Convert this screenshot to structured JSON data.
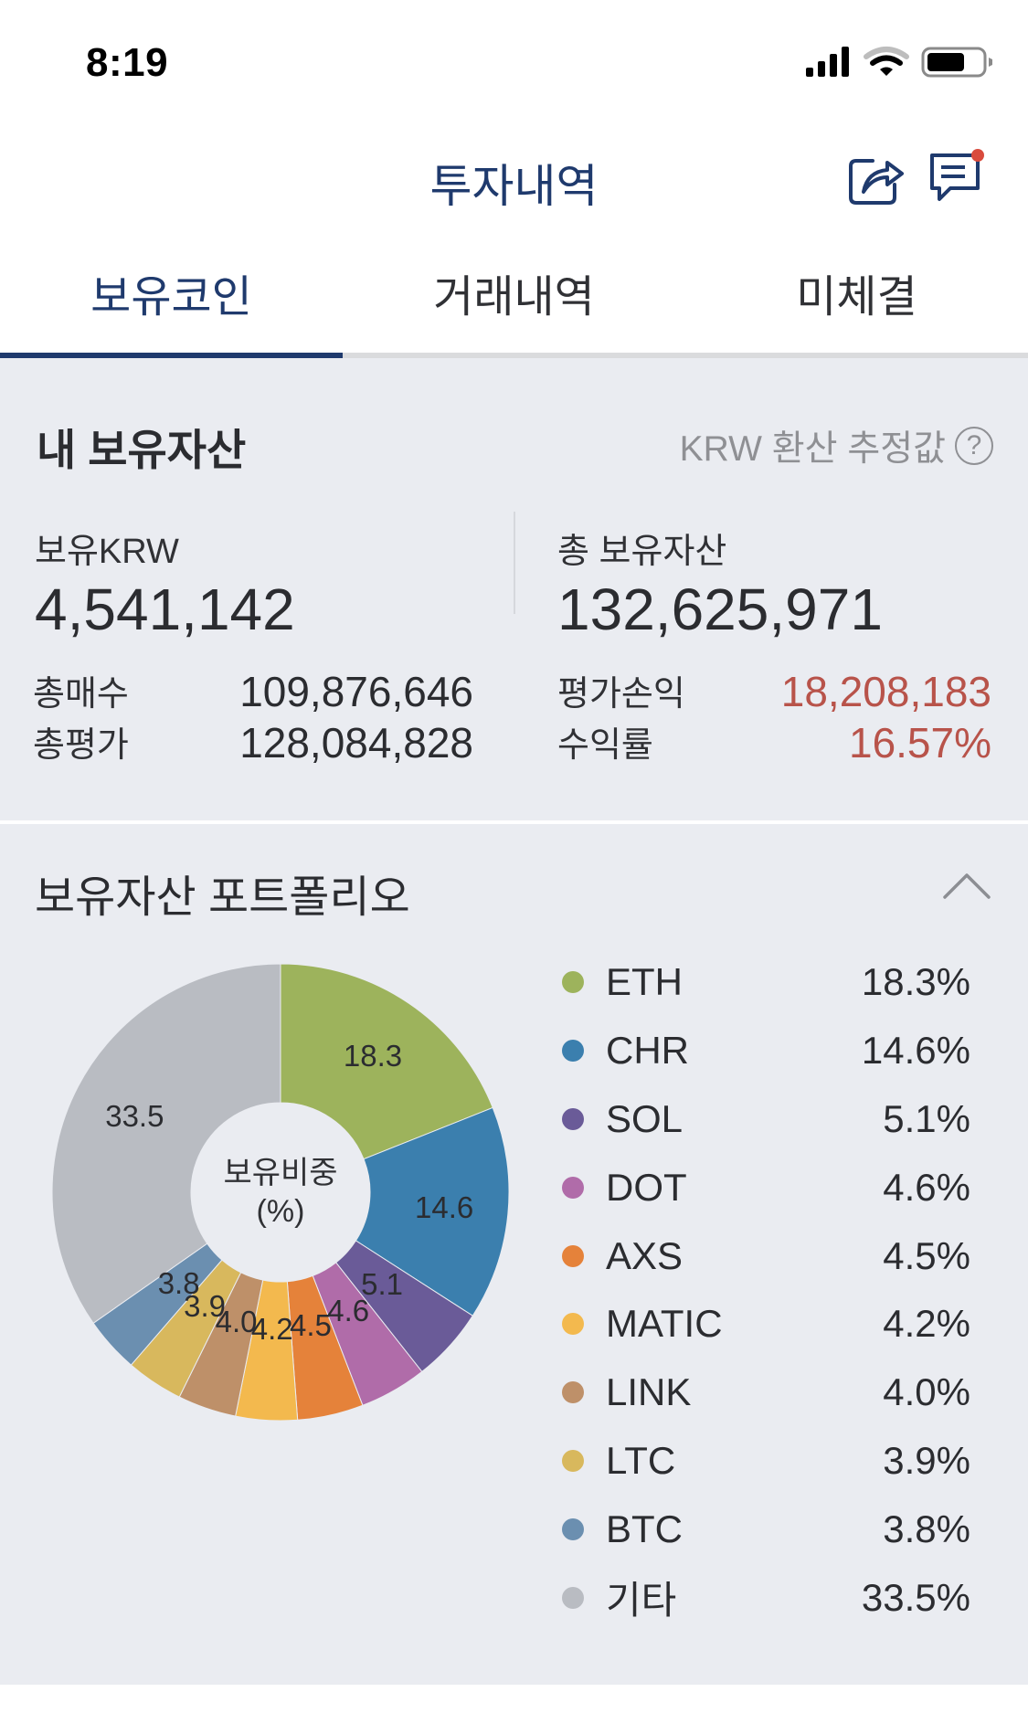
{
  "status_bar": {
    "time": "8:19",
    "icons": [
      "signal-icon",
      "wifi-icon",
      "battery-icon"
    ]
  },
  "header": {
    "title": "투자내역",
    "icons": [
      "share-icon",
      "chat-icon"
    ],
    "chat_badge_color": "#d94b3d"
  },
  "tabs": [
    {
      "label": "보유코인",
      "active": true
    },
    {
      "label": "거래내역",
      "active": false
    },
    {
      "label": "미체결",
      "active": false
    }
  ],
  "assets": {
    "title": "내 보유자산",
    "note": "KRW 환산 추정값",
    "help_icon": "?",
    "krw_label": "보유KRW",
    "krw_value": "4,541,142",
    "total_label": "총 보유자산",
    "total_value": "132,625,971",
    "rows_left": [
      {
        "label": "총매수",
        "value": "109,876,646"
      },
      {
        "label": "총평가",
        "value": "128,084,828"
      }
    ],
    "rows_right": [
      {
        "label": "평가손익",
        "value": "18,208,183"
      },
      {
        "label": "수익률",
        "value": "16.57%"
      }
    ],
    "profit_color": "#b8534a"
  },
  "portfolio": {
    "title": "보유자산 포트폴리오",
    "center_label_line1": "보유비중",
    "center_label_line2": "(%)",
    "legend": [
      {
        "name": "ETH",
        "pct": "18.3%",
        "color": "#9db35c"
      },
      {
        "name": "CHR",
        "pct": "14.6%",
        "color": "#3b7fae"
      },
      {
        "name": "SOL",
        "pct": "5.1%",
        "color": "#6a5b98"
      },
      {
        "name": "DOT",
        "pct": "4.6%",
        "color": "#b06ca9"
      },
      {
        "name": "AXS",
        "pct": "4.5%",
        "color": "#e5823a"
      },
      {
        "name": "MATIC",
        "pct": "4.2%",
        "color": "#f3b94e"
      },
      {
        "name": "LINK",
        "pct": "4.0%",
        "color": "#be9069"
      },
      {
        "name": "LTC",
        "pct": "3.9%",
        "color": "#d8b85d"
      },
      {
        "name": "BTC",
        "pct": "3.8%",
        "color": "#6b8fb0"
      },
      {
        "name": "기타",
        "pct": "33.5%",
        "color": "#b9bcc2"
      }
    ]
  },
  "chart_data": {
    "type": "pie",
    "donut": true,
    "title": "보유자산 포트폴리오",
    "center_label": "보유비중 (%)",
    "categories": [
      "ETH",
      "CHR",
      "SOL",
      "DOT",
      "AXS",
      "MATIC",
      "LINK",
      "LTC",
      "BTC",
      "기타"
    ],
    "values": [
      18.3,
      14.6,
      5.1,
      4.6,
      4.5,
      4.2,
      4.0,
      3.9,
      3.8,
      33.5
    ],
    "slice_labels": [
      "18.3",
      "14.6",
      "5.1",
      "4.6",
      "4.5",
      "4.2",
      "4.0",
      "3.9",
      "3.8",
      "33.5"
    ],
    "colors": [
      "#9db35c",
      "#3b7fae",
      "#6a5b98",
      "#b06ca9",
      "#e5823a",
      "#f3b94e",
      "#be9069",
      "#d8b85d",
      "#6b8fb0",
      "#b9bcc2"
    ],
    "start_angle": "top, clockwise",
    "legend_position": "right"
  }
}
